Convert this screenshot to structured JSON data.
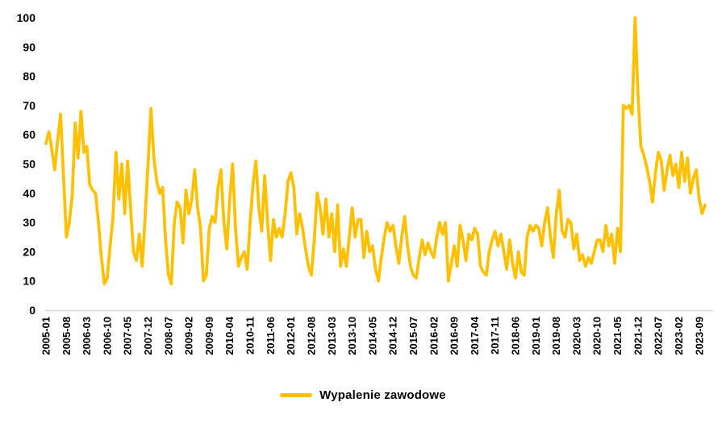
{
  "chart_data": {
    "type": "line",
    "title": "",
    "ylim": [
      0,
      100
    ],
    "grid": "none",
    "axis_line_color": "#D9D9D9",
    "label_color": "#000000",
    "background_color": "#FFFFFF",
    "y_tick_labels": [
      "0",
      "10",
      "20",
      "30",
      "40",
      "50",
      "60",
      "70",
      "80",
      "90",
      "100"
    ],
    "x_tick_labels": [
      "2005-01",
      "2005-08",
      "2006-03",
      "2006-10",
      "2007-05",
      "2007-12",
      "2008-07",
      "2009-02",
      "2009-09",
      "2010-04",
      "2010-11",
      "2011-06",
      "2012-01",
      "2012-08",
      "2013-03",
      "2013-10",
      "2014-05",
      "2014-12",
      "2015-07",
      "2016-02",
      "2016-09",
      "2017-04",
      "2017-11",
      "2018-06",
      "2019-01",
      "2019-08",
      "2020-03",
      "2020-10",
      "2021-05",
      "2021-12",
      "2022-07",
      "2023-02",
      "2023-09"
    ],
    "x_tick_every": 7,
    "legend": {
      "position": "bottom-center",
      "label": "Wypalenie zawodowe",
      "swatch_color": "#FFC000"
    },
    "series": [
      {
        "name": "Wypalenie zawodowe",
        "color": "#FFC000",
        "x_start": "2005-01",
        "x_interval": "monthly",
        "x_end": "2023-11",
        "values": [
          57,
          61,
          55,
          48,
          58,
          67,
          46,
          25,
          30,
          39,
          64,
          52,
          68,
          54,
          56,
          43,
          41,
          40,
          30,
          18,
          9,
          11,
          22,
          32,
          54,
          38,
          50,
          33,
          51,
          35,
          20,
          17,
          26,
          15,
          32,
          50,
          69,
          52,
          44,
          40,
          42,
          24,
          12,
          9,
          30,
          37,
          35,
          23,
          41,
          33,
          38,
          48,
          35,
          28,
          10,
          12,
          28,
          32,
          30,
          42,
          48,
          30,
          21,
          38,
          50,
          28,
          15,
          18,
          20,
          14,
          30,
          43,
          51,
          35,
          27,
          46,
          30,
          17,
          31,
          25,
          28,
          25,
          33,
          44,
          47,
          42,
          26,
          33,
          28,
          21,
          15,
          12,
          24,
          40,
          35,
          26,
          38,
          25,
          33,
          20,
          36,
          15,
          21,
          15,
          25,
          35,
          25,
          31,
          31,
          18,
          27,
          20,
          22,
          14,
          10,
          18,
          25,
          30,
          27,
          29,
          22,
          16,
          25,
          32,
          22,
          15,
          12,
          11,
          18,
          24,
          19,
          23,
          20,
          18,
          25,
          30,
          26,
          30,
          10,
          16,
          22,
          15,
          29,
          24,
          17,
          26,
          24,
          28,
          26,
          15,
          13,
          12,
          20,
          24,
          27,
          22,
          26,
          20,
          14,
          24,
          16,
          11,
          20,
          13,
          12,
          25,
          29,
          27,
          29,
          28,
          22,
          30,
          35,
          25,
          18,
          33,
          41,
          27,
          25,
          31,
          30,
          21,
          26,
          17,
          19,
          15,
          18,
          16,
          20,
          24,
          24,
          20,
          29,
          22,
          26,
          16,
          28,
          20,
          70,
          69,
          70,
          67,
          100,
          74,
          56,
          53,
          49,
          44,
          37,
          47,
          54,
          51,
          41,
          48,
          53,
          46,
          50,
          42,
          54,
          44,
          52,
          40,
          45,
          48,
          38,
          33,
          36
        ]
      }
    ]
  }
}
